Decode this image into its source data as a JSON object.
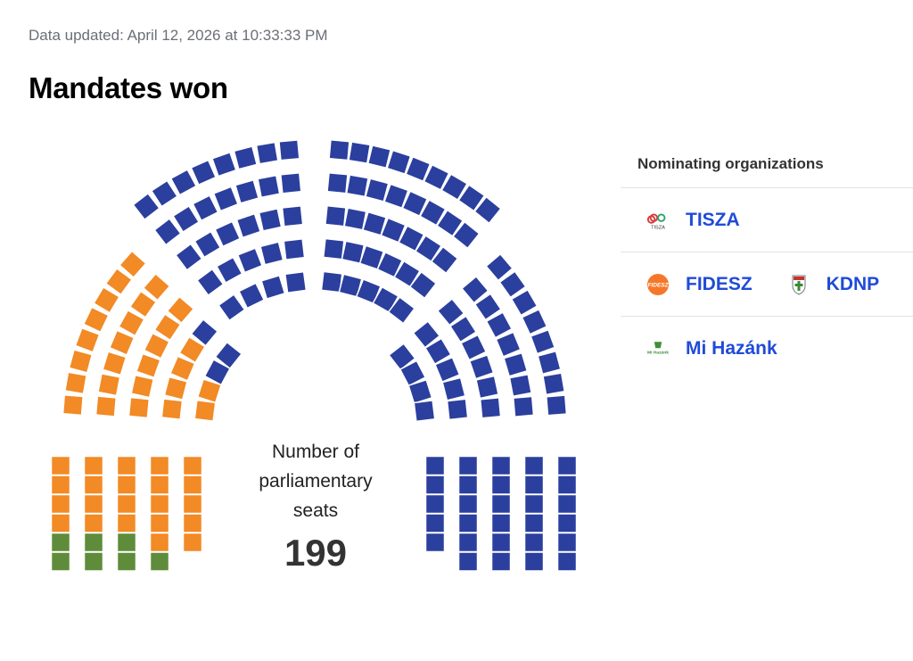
{
  "header": {
    "updated": "Data updated: April 12, 2026 at 10:33:33 PM",
    "title": "Mandates won"
  },
  "chart_data": {
    "type": "parliament",
    "total_label": "Number of parliamentary seats",
    "total": 199,
    "series": [
      {
        "name": "TISZA",
        "values": [
          141
        ],
        "color": "#2b3f9e"
      },
      {
        "name": "FIDESZ",
        "values": [
          49
        ],
        "color": "#f28a25"
      },
      {
        "name": "KDNP",
        "values": [
          0
        ],
        "color": "#f28a25"
      },
      {
        "name": "Mi Hazánk",
        "values": [
          7
        ],
        "color": "#5f8c3a"
      }
    ]
  },
  "center": {
    "label_lines": [
      "Number of",
      "parliamentary",
      "seats"
    ],
    "value": "199"
  },
  "legend": {
    "heading": "Nominating organizations",
    "rows": [
      [
        {
          "name": "TISZA",
          "logo_text": "TISZA",
          "icon": "tisza-logo"
        }
      ],
      [
        {
          "name": "FIDESZ",
          "logo_text": "FIDESZ",
          "icon": "fidesz-logo"
        },
        {
          "name": "KDNP",
          "icon": "kdnp-logo"
        }
      ],
      [
        {
          "name": "Mi Hazánk",
          "logo_text": "Mi Hazánk",
          "icon": "mi-hazank-logo"
        }
      ]
    ]
  },
  "colors": {
    "tisza": "#2b3f9e",
    "fidesz": "#f28a25",
    "mihazank": "#5f8c3a",
    "link": "#1f4bd8"
  }
}
